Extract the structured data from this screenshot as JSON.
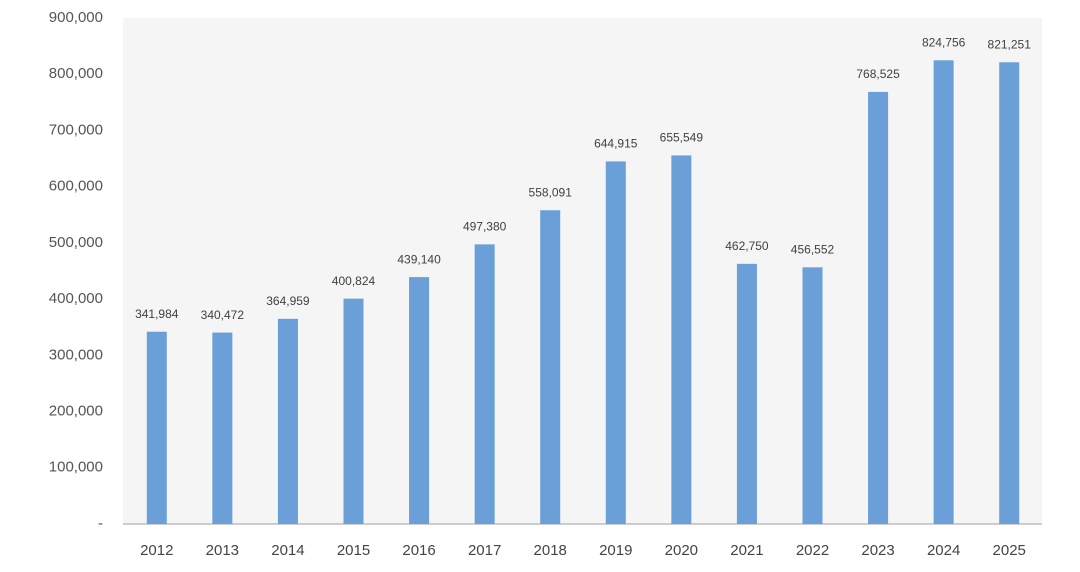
{
  "chart_data": {
    "type": "bar",
    "categories": [
      "2012",
      "2013",
      "2014",
      "2015",
      "2016",
      "2017",
      "2018",
      "2019",
      "2020",
      "2021",
      "2022",
      "2023",
      "2024",
      "2025"
    ],
    "values": [
      341984,
      340472,
      364959,
      400824,
      439140,
      497380,
      558091,
      644915,
      655549,
      462750,
      456552,
      768525,
      824756,
      821251
    ],
    "value_labels": [
      "341,984",
      "340,472",
      "364,959",
      "400,824",
      "439,140",
      "497,380",
      "558,091",
      "644,915",
      "655,549",
      "462,750",
      "456,552",
      "768,525",
      "824,756",
      "821,251"
    ],
    "color": "#6a9fd8",
    "ylim": [
      0,
      900000
    ],
    "yticks": [
      {
        "value": 0,
        "label": "-"
      },
      {
        "value": 100000,
        "label": "100,000"
      },
      {
        "value": 200000,
        "label": "200,000"
      },
      {
        "value": 300000,
        "label": "300,000"
      },
      {
        "value": 400000,
        "label": "400,000"
      },
      {
        "value": 500000,
        "label": "500,000"
      },
      {
        "value": 600000,
        "label": "600,000"
      },
      {
        "value": 700000,
        "label": "700,000"
      },
      {
        "value": 800000,
        "label": "800,000"
      },
      {
        "value": 900000,
        "label": "900,000"
      }
    ],
    "grid": false
  }
}
